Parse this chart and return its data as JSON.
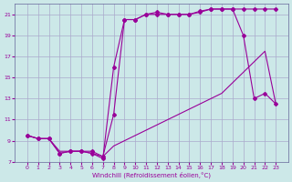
{
  "xlabel": "Windchill (Refroidissement éolien,°C)",
  "bg_color": "#cce8e8",
  "grid_color": "#aaaacc",
  "line_color": "#990099",
  "series1_x": [
    0,
    1,
    2,
    3,
    4,
    5,
    6,
    7,
    8,
    9,
    10,
    11,
    12,
    13,
    14,
    15,
    16,
    17,
    18,
    19,
    20,
    21,
    22,
    23
  ],
  "series1_y": [
    9.5,
    9.2,
    9.2,
    8.0,
    8.0,
    8.0,
    7.8,
    7.5,
    8.5,
    9.0,
    9.5,
    10.0,
    10.5,
    11.0,
    11.5,
    12.0,
    12.5,
    13.0,
    13.5,
    14.5,
    15.5,
    16.5,
    17.5,
    12.5
  ],
  "series2_x": [
    0,
    1,
    2,
    3,
    4,
    5,
    6,
    7,
    8,
    9,
    10,
    11,
    12,
    13,
    14,
    15,
    16,
    17,
    18,
    19,
    20,
    21,
    22,
    23
  ],
  "series2_y": [
    9.5,
    9.2,
    9.2,
    7.8,
    8.0,
    8.0,
    7.8,
    7.3,
    16.0,
    20.5,
    20.5,
    21.0,
    21.0,
    21.0,
    21.0,
    21.0,
    21.3,
    21.5,
    21.5,
    21.5,
    19.0,
    13.0,
    13.5,
    12.5
  ],
  "series3_x": [
    0,
    1,
    2,
    3,
    4,
    5,
    6,
    7,
    8,
    9,
    10,
    11,
    12,
    13,
    14,
    15,
    16,
    17,
    18,
    19,
    20,
    21,
    22,
    23
  ],
  "series3_y": [
    9.5,
    9.2,
    9.2,
    7.8,
    8.0,
    8.0,
    8.0,
    7.5,
    11.5,
    20.5,
    20.5,
    21.0,
    21.2,
    21.0,
    21.0,
    21.0,
    21.2,
    21.5,
    21.5,
    21.5,
    21.5,
    21.5,
    21.5,
    21.5
  ],
  "ylim": [
    7,
    22
  ],
  "yticks": [
    7,
    9,
    11,
    13,
    15,
    17,
    19,
    21
  ],
  "xticks": [
    0,
    1,
    2,
    3,
    4,
    5,
    6,
    7,
    8,
    9,
    10,
    11,
    12,
    13,
    14,
    15,
    16,
    17,
    18,
    19,
    20,
    21,
    22,
    23
  ]
}
